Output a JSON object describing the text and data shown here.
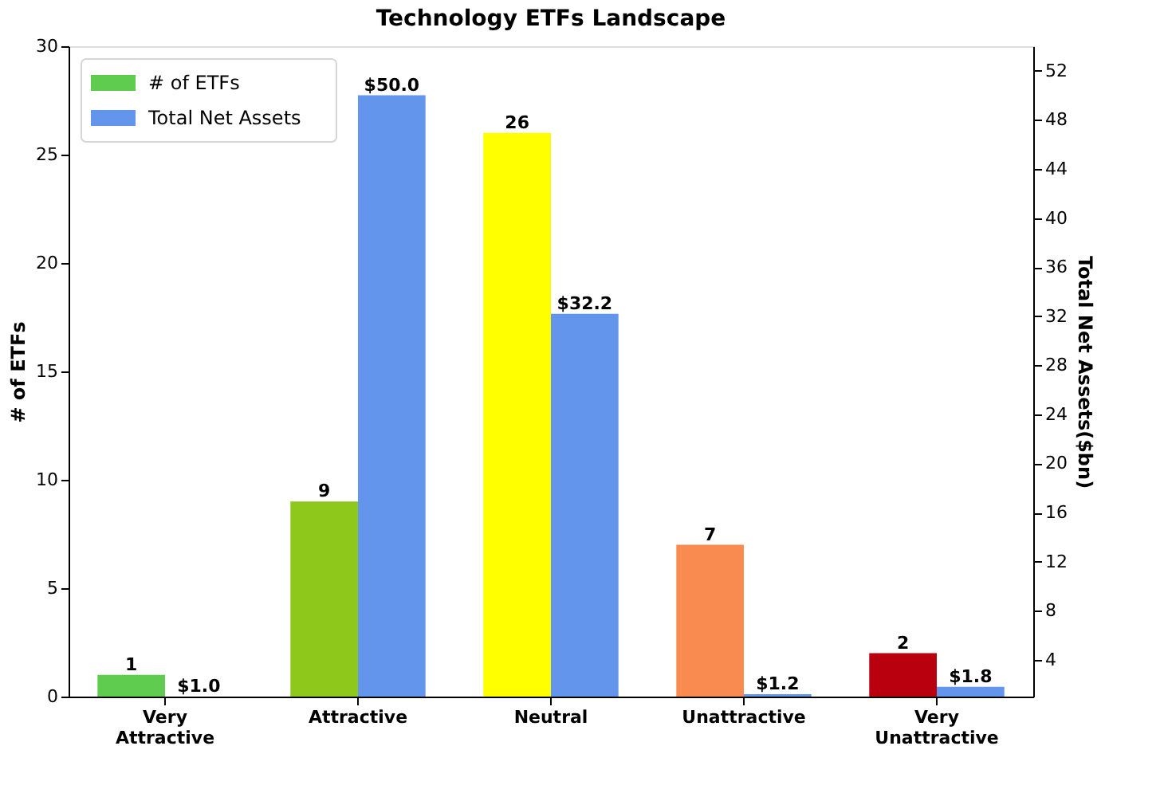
{
  "chart_data": {
    "type": "bar",
    "title": "Technology ETFs Landscape",
    "ylabel": "# of ETFs",
    "y2label": "Total Net Assets($bn)",
    "categories": [
      "Very Attractive",
      "Attractive",
      "Neutral",
      "Unattractive",
      "Very Unattractive"
    ],
    "series": [
      {
        "name": "# of ETFs",
        "color": "#5fcc4f",
        "colors": [
          "#5fcc4f",
          "#8dc81b",
          "#ffff00",
          "#f98b50",
          "#b8000e"
        ],
        "values": [
          1,
          9,
          26,
          7,
          2
        ],
        "value_labels": [
          "1",
          "9",
          "26",
          "7",
          "2"
        ]
      },
      {
        "name": "Total Net Assets",
        "axis": "y2",
        "color": "#6495ed",
        "values": [
          1.0,
          50.0,
          32.2,
          1.2,
          1.8
        ],
        "value_labels": [
          "$1.0",
          "$50.0",
          "$32.2",
          "$1.2",
          "$1.8"
        ]
      }
    ],
    "ylim": [
      0,
      30
    ],
    "yticks": [
      0,
      5,
      10,
      15,
      20,
      25,
      30
    ],
    "y2lim": [
      1.0,
      54.0
    ],
    "y2ticks": [
      4,
      8,
      12,
      16,
      20,
      24,
      28,
      32,
      36,
      40,
      44,
      48,
      52
    ],
    "grid": false,
    "legend": "top left"
  }
}
